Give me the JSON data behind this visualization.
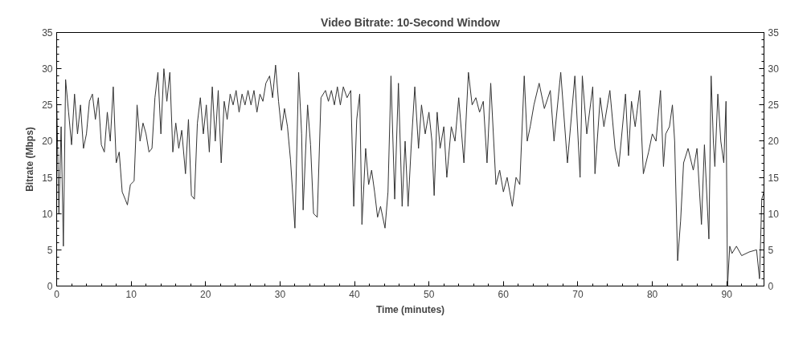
{
  "chart_data": {
    "type": "line",
    "title": "Video Bitrate: 10-Second Window",
    "xlabel": "Time (minutes)",
    "ylabel": "Bitrate (Mbps)",
    "xlim": [
      0,
      95
    ],
    "xticks": [
      0,
      10,
      20,
      30,
      40,
      50,
      60,
      70,
      80,
      90
    ],
    "ylim": [
      0,
      35
    ],
    "yticks": [
      0,
      5,
      10,
      15,
      20,
      25,
      30,
      35
    ],
    "y2lim": [
      0,
      35
    ],
    "y2ticks": [
      0,
      5,
      10,
      15,
      20,
      25,
      30,
      35
    ],
    "line_style": "solid",
    "series": [
      {
        "color": "#333333",
        "x": [
          0.0,
          0.3,
          0.6,
          0.9,
          1.2,
          1.6,
          2.0,
          2.4,
          2.8,
          3.2,
          3.6,
          4.0,
          4.4,
          4.8,
          5.2,
          5.6,
          6.0,
          6.4,
          6.8,
          7.2,
          7.6,
          8.0,
          8.4,
          8.8,
          9.2,
          9.5,
          9.9,
          10.4,
          10.8,
          11.2,
          11.6,
          12.0,
          12.4,
          12.8,
          13.2,
          13.6,
          14.0,
          14.4,
          14.8,
          15.2,
          15.6,
          16.0,
          16.4,
          16.8,
          17.3,
          17.7,
          18.1,
          18.5,
          18.9,
          19.3,
          19.7,
          20.1,
          20.5,
          20.9,
          21.3,
          21.7,
          22.1,
          22.5,
          22.9,
          23.3,
          23.7,
          24.1,
          24.5,
          24.9,
          25.3,
          25.7,
          26.1,
          26.5,
          26.9,
          27.3,
          27.7,
          28.1,
          28.6,
          29.0,
          29.4,
          29.8,
          30.2,
          30.6,
          31.0,
          31.4,
          32.0,
          32.5,
          32.9,
          33.1,
          33.7,
          34.1,
          34.5,
          35.0,
          35.5,
          36.1,
          36.5,
          36.9,
          37.3,
          37.7,
          38.1,
          38.5,
          39.0,
          39.5,
          39.9,
          40.3,
          40.7,
          41.0,
          41.5,
          41.9,
          42.3,
          42.7,
          43.1,
          43.5,
          44.1,
          44.5,
          44.9,
          45.4,
          45.9,
          46.4,
          46.8,
          47.2,
          47.6,
          48.1,
          48.6,
          49.0,
          49.5,
          50.0,
          50.4,
          50.7,
          51.1,
          51.5,
          52.0,
          52.4,
          53.0,
          53.5,
          54.0,
          54.7,
          55.3,
          55.8,
          56.3,
          56.8,
          57.3,
          57.8,
          58.3,
          59.0,
          59.5,
          60.0,
          60.5,
          61.2,
          61.7,
          62.2,
          62.8,
          63.2,
          63.6,
          64.1,
          64.8,
          65.5,
          66.3,
          66.8,
          67.7,
          68.6,
          69.6,
          70.3,
          70.6,
          71.2,
          72.0,
          72.3,
          73.0,
          73.5,
          74.3,
          75.0,
          75.5,
          76.4,
          76.8,
          77.2,
          77.7,
          78.3,
          78.8,
          79.5,
          80.0,
          80.5,
          81.1,
          81.5,
          81.8,
          82.3,
          82.7,
          83.0,
          83.4,
          83.8,
          84.2,
          84.8,
          85.5,
          86.0,
          86.6,
          87.0,
          87.6,
          87.9,
          88.2,
          88.4,
          88.8,
          89.2,
          89.6,
          89.9,
          90.1,
          90.4,
          90.7,
          91.3,
          92.0,
          93.0,
          94.0,
          94.4,
          94.7,
          95.0
        ],
        "values": [
          26,
          10,
          22,
          5.5,
          28.5,
          24,
          19.5,
          26.5,
          21,
          25,
          19,
          21,
          25.5,
          26.5,
          23,
          26,
          19.5,
          18.5,
          24,
          20,
          27.5,
          17,
          18.5,
          13,
          12,
          11.2,
          14,
          14.5,
          25,
          20,
          22.5,
          21,
          18.5,
          19,
          26,
          29.5,
          21,
          30,
          25.5,
          29.5,
          18.5,
          22.5,
          19,
          21.5,
          15.5,
          23,
          12.5,
          12,
          22.5,
          26,
          21,
          25,
          18.5,
          27.5,
          20,
          27,
          17,
          25.5,
          23,
          26.5,
          25,
          27,
          24,
          26.5,
          25,
          27,
          25,
          27,
          24,
          26.5,
          25.5,
          28,
          29,
          26,
          30.5,
          25.5,
          21.5,
          24.5,
          22,
          17.5,
          8,
          29.5,
          21,
          10.5,
          25,
          19.5,
          10,
          9.5,
          26,
          27,
          25.5,
          27,
          25,
          27.5,
          25,
          27.5,
          26,
          27,
          11,
          23,
          26.5,
          8.5,
          19,
          14,
          16,
          13,
          9.5,
          11,
          8,
          13,
          29,
          12,
          28,
          11,
          20,
          11,
          19,
          27.5,
          19,
          25,
          21,
          24,
          20,
          12.5,
          24,
          19,
          22,
          15,
          22,
          20,
          26,
          17,
          29.5,
          25,
          26,
          24,
          25.5,
          17,
          28,
          14,
          16,
          13,
          15,
          11,
          15,
          14,
          29,
          20,
          22,
          25,
          28,
          24.5,
          27,
          20,
          29.5,
          17,
          29,
          15,
          29,
          21,
          27.5,
          15.5,
          26,
          22,
          27,
          19,
          16.5,
          26.5,
          18,
          25.5,
          22,
          27,
          15.5,
          18.5,
          21,
          20,
          27,
          16.5,
          21,
          22,
          25,
          20,
          3.5,
          9,
          17,
          19,
          16,
          19,
          8.5,
          19.5,
          6.5,
          29,
          20,
          16.5,
          26.5,
          20,
          17,
          25.5,
          0,
          5.5,
          4.5,
          5.5,
          4.2,
          4.7,
          5,
          1,
          12,
          13
        ]
      }
    ]
  }
}
